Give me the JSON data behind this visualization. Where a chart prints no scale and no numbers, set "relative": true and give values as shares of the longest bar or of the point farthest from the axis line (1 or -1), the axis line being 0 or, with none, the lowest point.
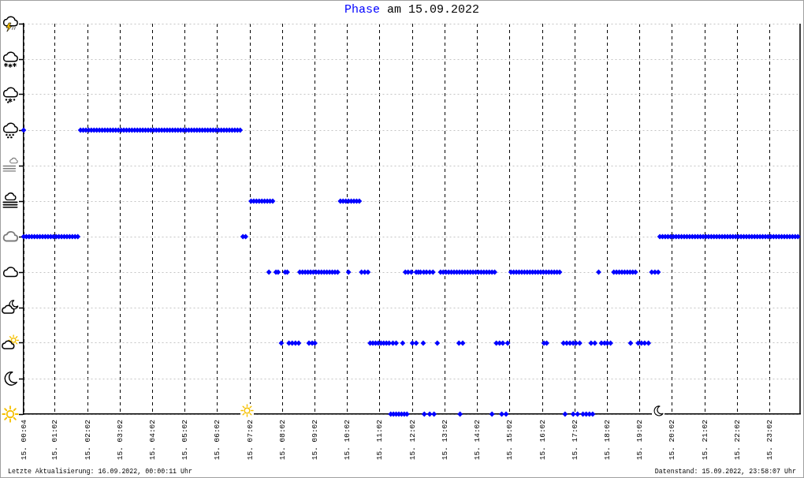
{
  "chart_data": {
    "type": "scatter",
    "title": "Phase am 15.09.2022",
    "annotations": [
      "Letzte Aktualisierung: 16.09.2022, 00:00:11 Uhr",
      "Datenstand: 15.09.2022, 23:58:07 Uhr"
    ],
    "relative": true,
    "xlim": [
      "2022-09-15T00:04",
      "2022-09-15T23:58"
    ],
    "xticks": [
      {
        "value": "2022-09-15T00:04",
        "label": "15. 00:04"
      },
      {
        "value": "2022-09-15T01:02",
        "label": "15. 01:02"
      },
      {
        "value": "2022-09-15T02:02",
        "label": "15. 02:02"
      },
      {
        "value": "2022-09-15T03:02",
        "label": "15. 03:02"
      },
      {
        "value": "2022-09-15T04:02",
        "label": "15. 04:02"
      },
      {
        "value": "2022-09-15T05:02",
        "label": "15. 05:02"
      },
      {
        "value": "2022-09-15T06:02",
        "label": "15. 06:02"
      },
      {
        "value": "2022-09-15T07:02",
        "label": "15. 07:02"
      },
      {
        "value": "2022-09-15T08:02",
        "label": "15. 08:02"
      },
      {
        "value": "2022-09-15T09:02",
        "label": "15. 09:02"
      },
      {
        "value": "2022-09-15T10:02",
        "label": "15. 10:02"
      },
      {
        "value": "2022-09-15T11:02",
        "label": "15. 11:02"
      },
      {
        "value": "2022-09-15T12:02",
        "label": "15. 12:02"
      },
      {
        "value": "2022-09-15T13:02",
        "label": "15. 13:02"
      },
      {
        "value": "2022-09-15T14:02",
        "label": "15. 14:02"
      },
      {
        "value": "2022-09-15T15:02",
        "label": "15. 15:02"
      },
      {
        "value": "2022-09-15T16:02",
        "label": "15. 16:02"
      },
      {
        "value": "2022-09-15T17:02",
        "label": "15. 17:02"
      },
      {
        "value": "2022-09-15T18:02",
        "label": "15. 18:02"
      },
      {
        "value": "2022-09-15T19:02",
        "label": "15. 19:02"
      },
      {
        "value": "2022-09-15T20:02",
        "label": "15. 20:02"
      },
      {
        "value": "2022-09-15T21:02",
        "label": "15. 21:02"
      },
      {
        "value": "2022-09-15T22:02",
        "label": "15. 22:02"
      },
      {
        "value": "2022-09-15T23:02",
        "label": "15. 23:02"
      }
    ],
    "grid": true,
    "marker": "diamond",
    "color": "#0000ff",
    "x": [
      "2022-09-15T00:04",
      "2022-09-15T01:49",
      "2022-09-15T01:54",
      "2022-09-15T01:59",
      "2022-09-15T02:04",
      "2022-09-15T02:09",
      "2022-09-15T02:14",
      "2022-09-15T02:19",
      "2022-09-15T02:24",
      "2022-09-15T02:29",
      "2022-09-15T02:34",
      "2022-09-15T02:39",
      "2022-09-15T02:44",
      "2022-09-15T02:49",
      "2022-09-15T02:54",
      "2022-09-15T02:59",
      "2022-09-15T03:04",
      "2022-09-15T03:09",
      "2022-09-15T03:14",
      "2022-09-15T03:19",
      "2022-09-15T03:24",
      "2022-09-15T03:29",
      "2022-09-15T03:34",
      "2022-09-15T03:39",
      "2022-09-15T03:44",
      "2022-09-15T03:49",
      "2022-09-15T03:54",
      "2022-09-15T03:59",
      "2022-09-15T04:04",
      "2022-09-15T04:09",
      "2022-09-15T04:14",
      "2022-09-15T04:19",
      "2022-09-15T04:24",
      "2022-09-15T04:29",
      "2022-09-15T04:34",
      "2022-09-15T04:39",
      "2022-09-15T04:44",
      "2022-09-15T04:49",
      "2022-09-15T04:54",
      "2022-09-15T04:59",
      "2022-09-15T05:04",
      "2022-09-15T05:09",
      "2022-09-15T05:14",
      "2022-09-15T05:19",
      "2022-09-15T05:24",
      "2022-09-15T05:29",
      "2022-09-15T05:34",
      "2022-09-15T05:39",
      "2022-09-15T05:44",
      "2022-09-15T05:49",
      "2022-09-15T05:54",
      "2022-09-15T05:59",
      "2022-09-15T06:04",
      "2022-09-15T06:09",
      "2022-09-15T06:14",
      "2022-09-15T06:19",
      "2022-09-15T06:24",
      "2022-09-15T06:29",
      "2022-09-15T06:34",
      "2022-09-15T06:39",
      "2022-09-15T06:44",
      "2022-09-15T00:04",
      "2022-09-15T00:09",
      "2022-09-15T00:14",
      "2022-09-15T00:19",
      "2022-09-15T00:24",
      "2022-09-15T00:29",
      "2022-09-15T00:34",
      "2022-09-15T00:39",
      "2022-09-15T00:44",
      "2022-09-15T00:49",
      "2022-09-15T00:54",
      "2022-09-15T00:59",
      "2022-09-15T01:04",
      "2022-09-15T01:09",
      "2022-09-15T01:14",
      "2022-09-15T01:19",
      "2022-09-15T01:24",
      "2022-09-15T01:29",
      "2022-09-15T01:34",
      "2022-09-15T01:39",
      "2022-09-15T01:44",
      "2022-09-15T06:49",
      "2022-09-15T06:54",
      "2022-09-15T19:39",
      "2022-09-15T19:44",
      "2022-09-15T19:49",
      "2022-09-15T19:54",
      "2022-09-15T19:59",
      "2022-09-15T20:04",
      "2022-09-15T20:09",
      "2022-09-15T20:14",
      "2022-09-15T20:19",
      "2022-09-15T20:24",
      "2022-09-15T20:29",
      "2022-09-15T20:34",
      "2022-09-15T20:39",
      "2022-09-15T20:44",
      "2022-09-15T20:49",
      "2022-09-15T20:54",
      "2022-09-15T20:59",
      "2022-09-15T21:04",
      "2022-09-15T21:09",
      "2022-09-15T21:14",
      "2022-09-15T21:19",
      "2022-09-15T21:24",
      "2022-09-15T21:29",
      "2022-09-15T21:34",
      "2022-09-15T21:39",
      "2022-09-15T21:44",
      "2022-09-15T21:49",
      "2022-09-15T21:54",
      "2022-09-15T21:59",
      "2022-09-15T22:04",
      "2022-09-15T22:09",
      "2022-09-15T22:14",
      "2022-09-15T22:19",
      "2022-09-15T22:24",
      "2022-09-15T22:29",
      "2022-09-15T22:34",
      "2022-09-15T22:39",
      "2022-09-15T22:44",
      "2022-09-15T22:49",
      "2022-09-15T22:54",
      "2022-09-15T22:59",
      "2022-09-15T23:04",
      "2022-09-15T23:09",
      "2022-09-15T23:14",
      "2022-09-15T23:19",
      "2022-09-15T23:24",
      "2022-09-15T23:29",
      "2022-09-15T23:34",
      "2022-09-15T23:39",
      "2022-09-15T23:44",
      "2022-09-15T23:49",
      "2022-09-15T23:54",
      "2022-09-15T07:04",
      "2022-09-15T07:09",
      "2022-09-15T07:14",
      "2022-09-15T07:19",
      "2022-09-15T07:24",
      "2022-09-15T07:29",
      "2022-09-15T07:34",
      "2022-09-15T07:39",
      "2022-09-15T07:44",
      "2022-09-15T09:49",
      "2022-09-15T09:54",
      "2022-09-15T09:59",
      "2022-09-15T10:04",
      "2022-09-15T10:09",
      "2022-09-15T10:14",
      "2022-09-15T10:19",
      "2022-09-15T10:24",
      "2022-09-15T07:37",
      "2022-09-15T07:50",
      "2022-09-15T07:54",
      "2022-09-15T08:07",
      "2022-09-15T08:11",
      "2022-09-15T08:34",
      "2022-09-15T08:39",
      "2022-09-15T08:44",
      "2022-09-15T08:49",
      "2022-09-15T08:54",
      "2022-09-15T08:59",
      "2022-09-15T09:04",
      "2022-09-15T09:09",
      "2022-09-15T09:14",
      "2022-09-15T09:19",
      "2022-09-15T09:24",
      "2022-09-15T09:29",
      "2022-09-15T09:34",
      "2022-09-15T09:39",
      "2022-09-15T09:44",
      "2022-09-15T10:04",
      "2022-09-15T10:28",
      "2022-09-15T10:34",
      "2022-09-15T10:40",
      "2022-09-15T11:49",
      "2022-09-15T11:54",
      "2022-09-15T12:00",
      "2022-09-15T12:09",
      "2022-09-15T12:13",
      "2022-09-15T12:17",
      "2022-09-15T12:23",
      "2022-09-15T12:28",
      "2022-09-15T12:34",
      "2022-09-15T12:40",
      "2022-09-15T12:54",
      "2022-09-15T12:59",
      "2022-09-15T13:04",
      "2022-09-15T13:09",
      "2022-09-15T13:14",
      "2022-09-15T13:19",
      "2022-09-15T13:24",
      "2022-09-15T13:29",
      "2022-09-15T13:34",
      "2022-09-15T13:39",
      "2022-09-15T13:44",
      "2022-09-15T13:49",
      "2022-09-15T13:54",
      "2022-09-15T13:59",
      "2022-09-15T14:04",
      "2022-09-15T14:09",
      "2022-09-15T14:14",
      "2022-09-15T14:19",
      "2022-09-15T14:24",
      "2022-09-15T14:29",
      "2022-09-15T14:34",
      "2022-09-15T15:04",
      "2022-09-15T15:09",
      "2022-09-15T15:14",
      "2022-09-15T15:19",
      "2022-09-15T15:24",
      "2022-09-15T15:29",
      "2022-09-15T15:34",
      "2022-09-15T15:39",
      "2022-09-15T15:44",
      "2022-09-15T15:49",
      "2022-09-15T15:54",
      "2022-09-15T15:59",
      "2022-09-15T16:04",
      "2022-09-15T16:09",
      "2022-09-15T16:14",
      "2022-09-15T16:19",
      "2022-09-15T16:24",
      "2022-09-15T16:29",
      "2022-09-15T16:34",
      "2022-09-15T17:46",
      "2022-09-15T18:14",
      "2022-09-15T18:19",
      "2022-09-15T18:24",
      "2022-09-15T18:29",
      "2022-09-15T18:34",
      "2022-09-15T18:39",
      "2022-09-15T18:44",
      "2022-09-15T18:49",
      "2022-09-15T18:54",
      "2022-09-15T19:24",
      "2022-09-15T19:30",
      "2022-09-15T19:36",
      "2022-09-15T08:00",
      "2022-09-15T08:14",
      "2022-09-15T08:20",
      "2022-09-15T08:26",
      "2022-09-15T08:32",
      "2022-09-15T08:51",
      "2022-09-15T08:57",
      "2022-09-15T09:02",
      "2022-09-15T10:44",
      "2022-09-15T10:49",
      "2022-09-15T10:54",
      "2022-09-15T10:59",
      "2022-09-15T11:04",
      "2022-09-15T11:09",
      "2022-09-15T11:14",
      "2022-09-15T11:19",
      "2022-09-15T11:26",
      "2022-09-15T11:32",
      "2022-09-15T11:44",
      "2022-09-15T12:02",
      "2022-09-15T12:09",
      "2022-09-15T12:22",
      "2022-09-15T12:48",
      "2022-09-15T13:28",
      "2022-09-15T13:35",
      "2022-09-15T14:37",
      "2022-09-15T14:43",
      "2022-09-15T14:49",
      "2022-09-15T14:58",
      "2022-09-15T16:05",
      "2022-09-15T16:10",
      "2022-09-15T16:41",
      "2022-09-15T16:47",
      "2022-09-15T16:53",
      "2022-09-15T16:59",
      "2022-09-15T17:04",
      "2022-09-15T17:11",
      "2022-09-15T17:32",
      "2022-09-15T17:39",
      "2022-09-15T17:51",
      "2022-09-15T17:57",
      "2022-09-15T18:02",
      "2022-09-15T18:08",
      "2022-09-15T18:45",
      "2022-09-15T18:59",
      "2022-09-15T19:05",
      "2022-09-15T19:11",
      "2022-09-15T19:18",
      "2022-09-15T11:22",
      "2022-09-15T11:27",
      "2022-09-15T11:32",
      "2022-09-15T11:37",
      "2022-09-15T11:42",
      "2022-09-15T11:47",
      "2022-09-15T11:52",
      "2022-09-15T12:24",
      "2022-09-15T12:34",
      "2022-09-15T12:42",
      "2022-09-15T13:30",
      "2022-09-15T14:29",
      "2022-09-15T14:47",
      "2022-09-15T14:55",
      "2022-09-15T16:44",
      "2022-09-15T16:59",
      "2022-09-15T17:07",
      "2022-09-15T17:17",
      "2022-09-15T17:23",
      "2022-09-15T17:29",
      "2022-09-15T17:35"
    ],
    "values": [
      1,
      1,
      1,
      1,
      1,
      1,
      1,
      1,
      1,
      1,
      1,
      1,
      1,
      1,
      1,
      1,
      1,
      1,
      1,
      1,
      1,
      1,
      1,
      1,
      1,
      1,
      1,
      1,
      1,
      1,
      1,
      1,
      1,
      1,
      1,
      1,
      1,
      1,
      1,
      1,
      1,
      1,
      1,
      1,
      1,
      1,
      1,
      1,
      1,
      1,
      1,
      1,
      1,
      1,
      1,
      1,
      1,
      1,
      1,
      1,
      1,
      0.625,
      0.625,
      0.625,
      0.625,
      0.625,
      0.625,
      0.625,
      0.625,
      0.625,
      0.625,
      0.625,
      0.625,
      0.625,
      0.625,
      0.625,
      0.625,
      0.625,
      0.625,
      0.625,
      0.625,
      0.625,
      0.625,
      0.625,
      0.625,
      0.625,
      0.625,
      0.625,
      0.625,
      0.625,
      0.625,
      0.625,
      0.625,
      0.625,
      0.625,
      0.625,
      0.625,
      0.625,
      0.625,
      0.625,
      0.625,
      0.625,
      0.625,
      0.625,
      0.625,
      0.625,
      0.625,
      0.625,
      0.625,
      0.625,
      0.625,
      0.625,
      0.625,
      0.625,
      0.625,
      0.625,
      0.625,
      0.625,
      0.625,
      0.625,
      0.625,
      0.625,
      0.625,
      0.625,
      0.625,
      0.625,
      0.625,
      0.625,
      0.625,
      0.625,
      0.625,
      0.625,
      0.625,
      0.625,
      0.625,
      0.625,
      0.75,
      0.75,
      0.75,
      0.75,
      0.75,
      0.75,
      0.75,
      0.75,
      0.75,
      0.75,
      0.75,
      0.75,
      0.75,
      0.75,
      0.75,
      0.75,
      0.75,
      0.5,
      0.5,
      0.5,
      0.5,
      0.5,
      0.5,
      0.5,
      0.5,
      0.5,
      0.5,
      0.5,
      0.5,
      0.5,
      0.5,
      0.5,
      0.5,
      0.5,
      0.5,
      0.5,
      0.5,
      0.5,
      0.5,
      0.5,
      0.5,
      0.5,
      0.5,
      0.5,
      0.5,
      0.5,
      0.5,
      0.5,
      0.5,
      0.5,
      0.5,
      0.5,
      0.5,
      0.5,
      0.5,
      0.5,
      0.5,
      0.5,
      0.5,
      0.5,
      0.5,
      0.5,
      0.5,
      0.5,
      0.5,
      0.5,
      0.5,
      0.5,
      0.5,
      0.5,
      0.5,
      0.5,
      0.5,
      0.5,
      0.5,
      0.5,
      0.5,
      0.5,
      0.5,
      0.5,
      0.5,
      0.5,
      0.5,
      0.5,
      0.5,
      0.5,
      0.5,
      0.5,
      0.5,
      0.5,
      0.5,
      0.5,
      0.5,
      0.5,
      0.5,
      0.5,
      0.5,
      0.5,
      0.5,
      0.5,
      0.5,
      0.5,
      0.5,
      0.5,
      0.25,
      0.25,
      0.25,
      0.25,
      0.25,
      0.25,
      0.25,
      0.25,
      0.25,
      0.25,
      0.25,
      0.25,
      0.25,
      0.25,
      0.25,
      0.25,
      0.25,
      0.25,
      0.25,
      0.25,
      0.25,
      0.25,
      0.25,
      0.25,
      0.25,
      0.25,
      0.25,
      0.25,
      0.25,
      0.25,
      0.25,
      0.25,
      0.25,
      0.25,
      0.25,
      0.25,
      0.25,
      0.25,
      0.25,
      0.25,
      0.25,
      0.25,
      0.25,
      0.25,
      0.25,
      0.25,
      0.25,
      0.25,
      0,
      0,
      0,
      0,
      0,
      0,
      0,
      0,
      0,
      0,
      0,
      0,
      0,
      0,
      0,
      0,
      0,
      0,
      0,
      0,
      0
    ]
  }
}
